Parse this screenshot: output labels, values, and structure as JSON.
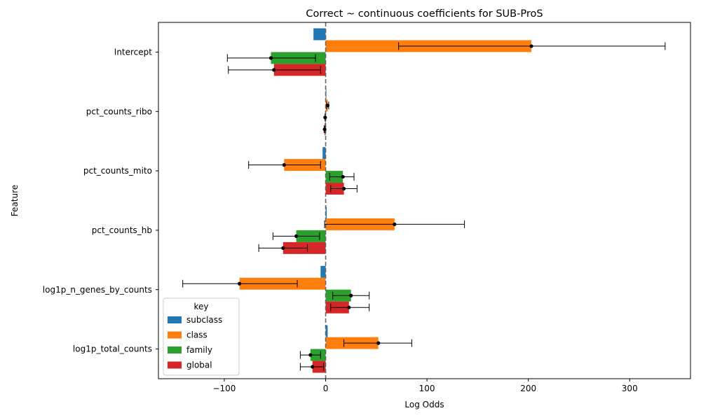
{
  "chart_data": {
    "type": "bar",
    "orientation": "horizontal",
    "title": "Correct ~ continuous coefficients for SUB-ProS",
    "xlabel": "Log Odds",
    "ylabel": "Feature",
    "xlim": [
      -165,
      360
    ],
    "xticks": [
      -100,
      0,
      100,
      200,
      300
    ],
    "xtick_labels": [
      "−100",
      "0",
      "100",
      "200",
      "300"
    ],
    "reference_line": 0,
    "categories": [
      "Intercept",
      "pct_counts_ribo",
      "pct_counts_mito",
      "pct_counts_hb",
      "log1p_n_genes_by_counts",
      "log1p_total_counts"
    ],
    "legend_title": "key",
    "legend_position": "lower-left",
    "series": [
      {
        "name": "subclass",
        "color": "#1f77b4",
        "values": [
          -12,
          0.5,
          -3,
          1,
          -5,
          2
        ],
        "ci_low": [
          null,
          null,
          null,
          null,
          null,
          null
        ],
        "ci_high": [
          null,
          null,
          null,
          null,
          null,
          null
        ]
      },
      {
        "name": "class",
        "color": "#ff7f0e",
        "values": [
          203,
          2,
          -41,
          68,
          -85,
          52
        ],
        "ci_low": [
          72,
          1,
          -76,
          -1,
          -141,
          18
        ],
        "ci_high": [
          335,
          3,
          -5,
          137,
          -28,
          85
        ]
      },
      {
        "name": "family",
        "color": "#2ca02c",
        "values": [
          -54,
          -0.5,
          17,
          -29,
          25,
          -15
        ],
        "ci_low": [
          -97,
          -0.5,
          4,
          -52,
          7,
          -25
        ],
        "ci_high": [
          -10,
          -0.5,
          28,
          -6,
          43,
          -5
        ]
      },
      {
        "name": "global",
        "color": "#d62728",
        "values": [
          -51,
          -1,
          18,
          -42,
          23,
          -13
        ],
        "ci_low": [
          -96,
          -1.5,
          5,
          -66,
          5,
          -25
        ],
        "ci_high": [
          -5,
          -0.5,
          31,
          -18,
          43,
          -2
        ]
      }
    ]
  }
}
